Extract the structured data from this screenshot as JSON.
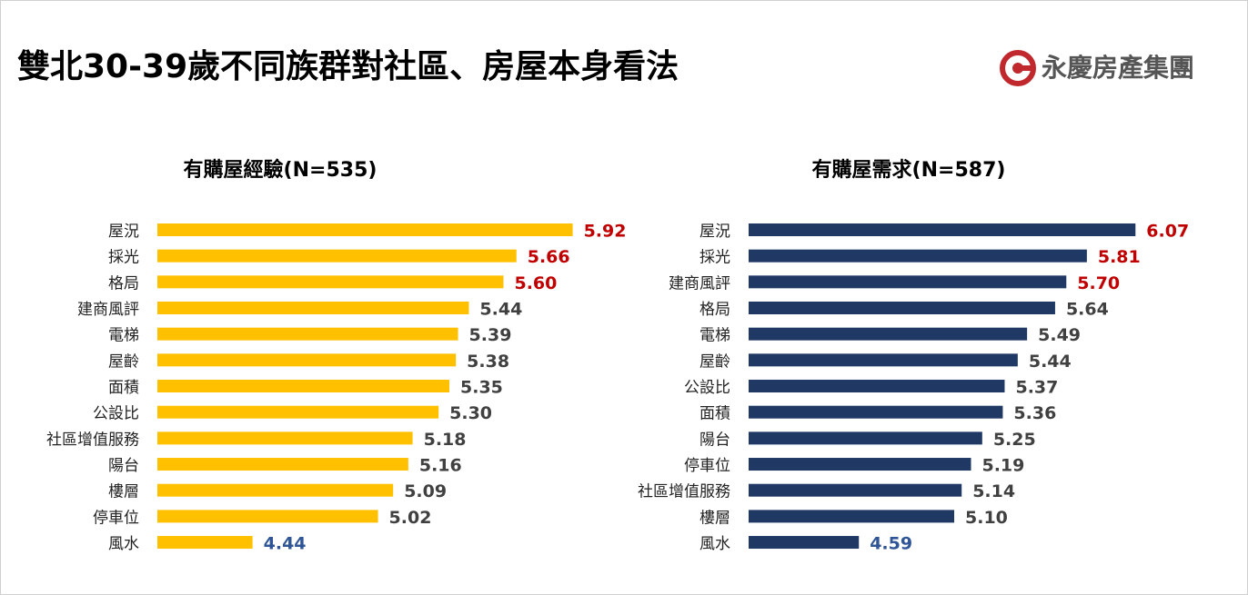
{
  "title": "雙北30-39歲不同族群對社區、房屋本身看法",
  "logo": "永慶房產集團",
  "chart_data": [
    {
      "type": "hbar",
      "title": "有購屋經驗(N=535)",
      "color": "#ffc000",
      "categories": [
        "屋況",
        "採光",
        "格局",
        "建商風評",
        "電梯",
        "屋齡",
        "面積",
        "公設比",
        "社區增值服務",
        "陽台",
        "樓層",
        "停車位",
        "風水"
      ],
      "values": [
        5.92,
        5.66,
        5.6,
        5.44,
        5.39,
        5.38,
        5.35,
        5.3,
        5.18,
        5.16,
        5.09,
        5.02,
        4.44
      ],
      "value_labels": [
        "5.92",
        "5.66",
        "5.60",
        "5.44",
        "5.39",
        "5.38",
        "5.35",
        "5.30",
        "5.18",
        "5.16",
        "5.09",
        "5.02",
        "4.44"
      ],
      "value_label_colors": [
        "#c00000",
        "#c00000",
        "#c00000",
        "#404040",
        "#404040",
        "#404040",
        "#404040",
        "#404040",
        "#404040",
        "#404040",
        "#404040",
        "#404040",
        "#2f5597"
      ],
      "xlim": [
        4,
        6
      ]
    },
    {
      "type": "hbar",
      "title": "有購屋需求(N=587)",
      "color": "#1f3864",
      "categories": [
        "屋況",
        "採光",
        "建商風評",
        "格局",
        "電梯",
        "屋齡",
        "公設比",
        "面積",
        "陽台",
        "停車位",
        "社區增值服務",
        "樓層",
        "風水"
      ],
      "values": [
        6.07,
        5.81,
        5.7,
        5.64,
        5.49,
        5.44,
        5.37,
        5.36,
        5.25,
        5.19,
        5.14,
        5.1,
        4.59
      ],
      "value_labels": [
        "6.07",
        "5.81",
        "5.70",
        "5.64",
        "5.49",
        "5.44",
        "5.37",
        "5.36",
        "5.25",
        "5.19",
        "5.14",
        "5.10",
        "4.59"
      ],
      "value_label_colors": [
        "#c00000",
        "#c00000",
        "#c00000",
        "#404040",
        "#404040",
        "#404040",
        "#404040",
        "#404040",
        "#404040",
        "#404040",
        "#404040",
        "#404040",
        "#2f5597"
      ],
      "xlim": [
        4,
        6.2
      ]
    }
  ]
}
